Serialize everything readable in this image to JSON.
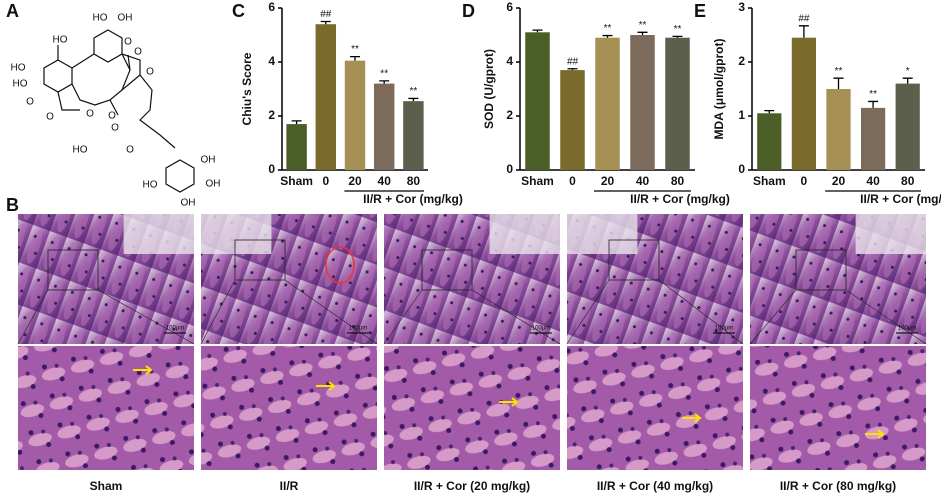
{
  "panel_labels": [
    "A",
    "B",
    "C",
    "D",
    "E"
  ],
  "structure": {
    "labels": [
      "HO",
      "OH",
      "HO",
      "O",
      "HO",
      "HO",
      "O",
      "O",
      "O",
      "O",
      "O",
      "HO",
      "O",
      "O",
      "OH",
      "OH",
      "HO",
      "O",
      "OH"
    ]
  },
  "chart_data": [
    {
      "type": "bar",
      "y_label": "Chiu's Score",
      "x_label": "II/R + Cor (mg/kg)",
      "categories": [
        "Sham",
        "0",
        "20",
        "40",
        "80"
      ],
      "values": [
        1.7,
        5.4,
        4.05,
        3.2,
        2.55
      ],
      "errors": [
        0.12,
        0.1,
        0.15,
        0.1,
        0.1
      ],
      "annotations": [
        null,
        "##",
        "**",
        "**",
        "**"
      ],
      "colors": [
        "#4b5e27",
        "#7a6a2b",
        "#a68f52",
        "#7c6a5b",
        "#5b5f4b"
      ],
      "ylim": [
        0,
        6
      ],
      "yticks": [
        0,
        2,
        4,
        6
      ]
    },
    {
      "type": "bar",
      "y_label": "SOD (U/gprot)",
      "x_label": "II/R + Cor (mg/kg)",
      "categories": [
        "Sham",
        "0",
        "20",
        "40",
        "80"
      ],
      "values": [
        5.1,
        3.7,
        4.9,
        5.0,
        4.9
      ],
      "errors": [
        0.08,
        0.05,
        0.08,
        0.1,
        0.05
      ],
      "annotations": [
        null,
        "##",
        "**",
        "**",
        "**"
      ],
      "colors": [
        "#4b5e27",
        "#7a6a2b",
        "#a68f52",
        "#7c6a5b",
        "#5b5f4b"
      ],
      "ylim": [
        0,
        6
      ],
      "yticks": [
        0,
        2,
        4,
        6
      ]
    },
    {
      "type": "bar",
      "y_label": "MDA (μmol/gprot)",
      "x_label": "II/R + Cor (mg/kg)",
      "categories": [
        "Sham",
        "0",
        "20",
        "40",
        "80"
      ],
      "values": [
        1.05,
        2.45,
        1.5,
        1.15,
        1.6
      ],
      "errors": [
        0.05,
        0.22,
        0.2,
        0.12,
        0.1
      ],
      "annotations": [
        null,
        "##",
        "**",
        "**",
        "*"
      ],
      "colors": [
        "#4b5e27",
        "#7a6a2b",
        "#a68f52",
        "#7c6a5b",
        "#5b5f4b"
      ],
      "ylim": [
        0,
        3
      ],
      "yticks": [
        0,
        1,
        2,
        3
      ]
    }
  ],
  "histology": {
    "captions": [
      "Sham",
      "II/R",
      "II/R + Cor (20 mg/kg)",
      "II/R + Cor (40 mg/kg)",
      "II/R + Cor (80 mg/kg)"
    ],
    "scale_labels": [
      "100μm",
      "100μm",
      "100μm",
      "100μm",
      "100μm"
    ]
  }
}
